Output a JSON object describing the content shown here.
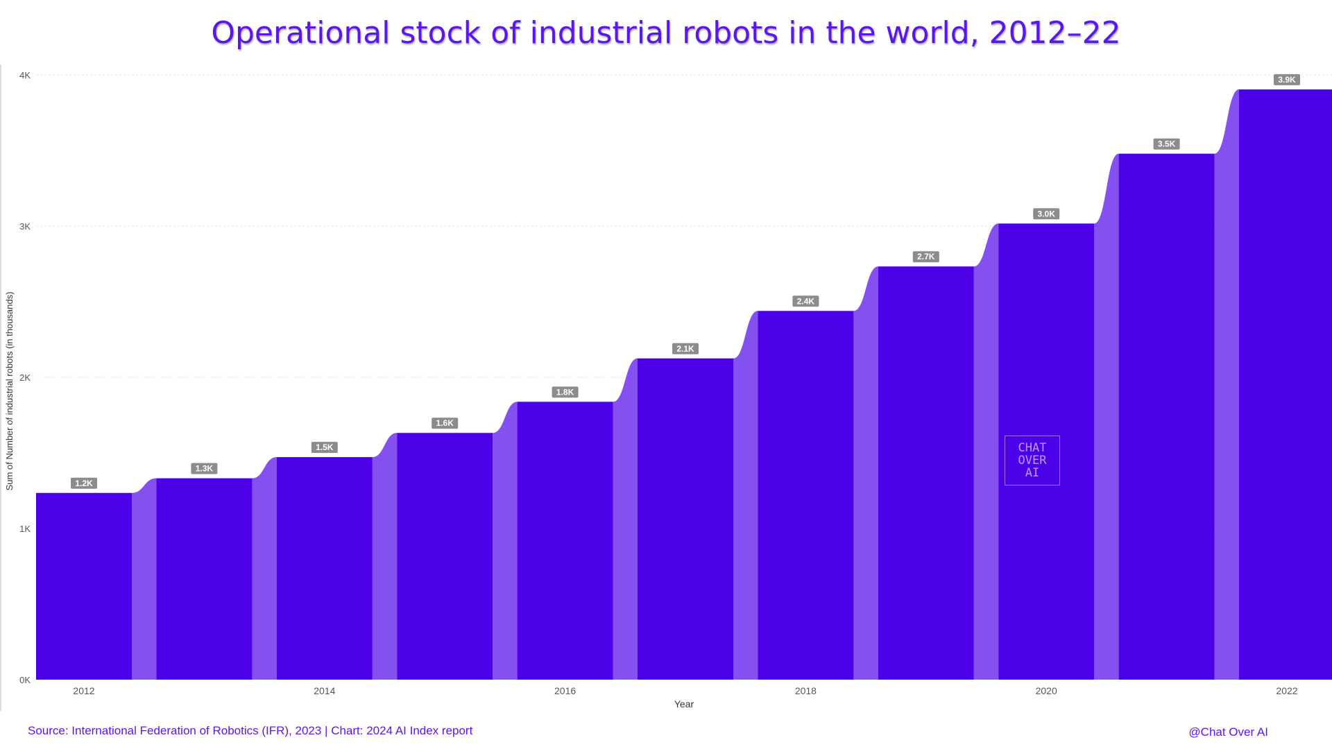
{
  "title": "Operational stock of industrial robots in the world, 2012–22",
  "source": "Source: International Federation of Robotics (IFR), 2023 | Chart: 2024 AI Index report",
  "credit": "@Chat Over AI",
  "watermark": [
    "CHAT",
    "OVER",
    "AI"
  ],
  "colors": {
    "bar": "#4c00e8",
    "connector": "#8450f0",
    "title": "#5b16f0",
    "label_bg": "#8c8c8c",
    "axis_text": "#555555"
  },
  "chart_data": {
    "type": "bar",
    "title": "Operational stock of industrial robots in the world, 2012–22",
    "xlabel": "Year",
    "ylabel": "Sum of Number of industrial robots (in thousands)",
    "categories": [
      "2012",
      "2013",
      "2014",
      "2015",
      "2016",
      "2017",
      "2018",
      "2019",
      "2020",
      "2021",
      "2022"
    ],
    "values": [
      1235,
      1332,
      1472,
      1632,
      1838,
      2125,
      2439,
      2733,
      3017,
      3479,
      3904
    ],
    "data_labels": [
      "1.2K",
      "1.3K",
      "1.5K",
      "1.6K",
      "1.8K",
      "2.1K",
      "2.4K",
      "2.7K",
      "3.0K",
      "3.5K",
      "3.9K"
    ],
    "x_tick_labels": [
      "2012",
      "",
      "2014",
      "",
      "2016",
      "",
      "2018",
      "",
      "2020",
      "",
      "2022"
    ],
    "y_ticks": [
      0,
      1000,
      2000,
      3000,
      4000
    ],
    "y_tick_labels": [
      "0K",
      "1K",
      "2K",
      "3K",
      "4K"
    ],
    "ylim": [
      0,
      4000
    ],
    "grid": true
  }
}
